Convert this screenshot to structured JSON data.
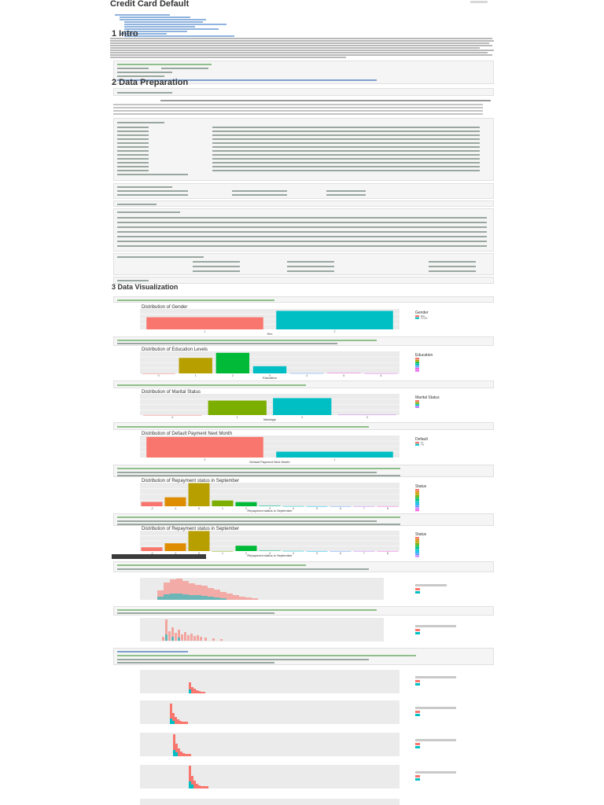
{
  "document": {
    "title": "Credit Card Default",
    "subtitle": "",
    "sections": {
      "intro": "1 Intro",
      "prep": "2 Data Preparation",
      "viz": "3 Data Visualization"
    }
  },
  "chart_data": [
    {
      "type": "bar",
      "title": "Distribution of Gender",
      "xlabel": "Sex",
      "ylabel": "",
      "categories": [
        "1",
        "2"
      ],
      "values": [
        11888,
        18112
      ],
      "ylim": [
        0,
        20000
      ],
      "legend_title": "Gender",
      "legend_labels": [
        "Male",
        "Female"
      ],
      "colors": [
        "#F8766D",
        "#00BFC4"
      ]
    },
    {
      "type": "bar",
      "title": "Distribution of Education Levels",
      "xlabel": "Education",
      "ylabel": "",
      "categories": [
        "0",
        "1",
        "2",
        "3",
        "4",
        "5",
        "6"
      ],
      "values": [
        14,
        10585,
        14030,
        4917,
        123,
        280,
        51
      ],
      "ylim": [
        0,
        15000
      ],
      "legend_title": "Education",
      "legend_labels": [],
      "colors": [
        "#F8766D",
        "#B79F00",
        "#00BA38",
        "#00BFC4",
        "#619CFF",
        "#F564E3",
        "#E76BF3"
      ]
    },
    {
      "type": "bar",
      "title": "Distribution of Marital Status",
      "xlabel": "Marriage",
      "ylabel": "",
      "categories": [
        "0",
        "1",
        "2",
        "3"
      ],
      "values": [
        54,
        13659,
        15964,
        323
      ],
      "ylim": [
        0,
        20000
      ],
      "legend_title": "Marital Status",
      "legend_labels": [],
      "colors": [
        "#F8766D",
        "#7CAE00",
        "#00BFC4",
        "#C77CFF"
      ]
    },
    {
      "type": "bar",
      "title": "Distribution of Default Payment Next Month",
      "xlabel": "Default Payment Next Month",
      "ylabel": "",
      "categories": [
        "0",
        "1"
      ],
      "values": [
        23364,
        6636
      ],
      "ylim": [
        0,
        25000
      ],
      "legend_title": "Default",
      "legend_labels": [
        "No",
        "Yes"
      ],
      "colors": [
        "#F8766D",
        "#00BFC4"
      ]
    },
    {
      "type": "bar",
      "title": "Distribution of Repayment status in September",
      "xlabel": "Repayment status in September",
      "ylabel": "",
      "categories": [
        "-2",
        "-1",
        "0",
        "1",
        "2",
        "3",
        "4",
        "5",
        "6",
        "7",
        "8"
      ],
      "values": [
        2759,
        5686,
        14737,
        3688,
        2667,
        322,
        76,
        26,
        11,
        9,
        19
      ],
      "ylim": [
        0,
        15000
      ],
      "legend_title": "Status",
      "legend_labels": [],
      "colors": [
        "#F8766D",
        "#DE8C00",
        "#B79F00",
        "#7CAE00",
        "#00BA38",
        "#00C08B",
        "#00BFC4",
        "#00B4F0",
        "#619CFF",
        "#C77CFF",
        "#F564E3"
      ]
    },
    {
      "type": "bar",
      "title": "Distribution of Repayment status in September",
      "xlabel": "Repayment status in September",
      "ylabel": "",
      "categories": [
        "-2",
        "-1",
        "0",
        "1",
        "2",
        "3",
        "4",
        "5",
        "6",
        "7",
        "8"
      ],
      "values": [
        2759,
        5686,
        14737,
        28,
        3927,
        326,
        99,
        25,
        12,
        20,
        1
      ],
      "ylim": [
        0,
        15000
      ],
      "legend_title": "Status",
      "legend_labels": [],
      "colors": [
        "#F8766D",
        "#DE8C00",
        "#B79F00",
        "#7CAE00",
        "#00BA38",
        "#00C08B",
        "#00BFC4",
        "#00B4F0",
        "#619CFF",
        "#C77CFF",
        "#F564E3"
      ]
    }
  ]
}
